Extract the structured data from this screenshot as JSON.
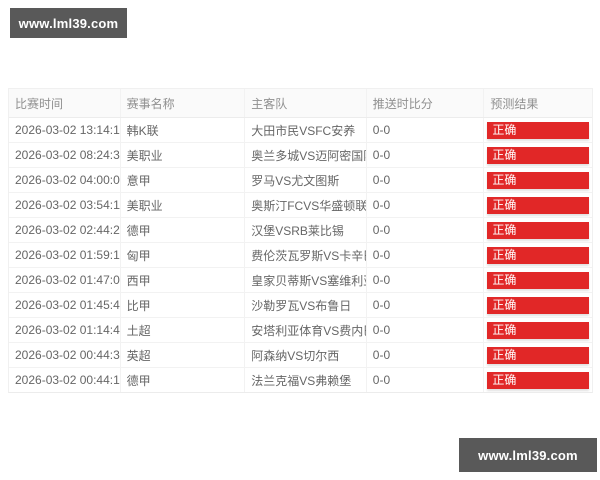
{
  "watermark": {
    "text": "www.lml39.com"
  },
  "table": {
    "headers": [
      "比赛时间",
      "赛事名称",
      "主客队",
      "推送时比分",
      "预测结果"
    ],
    "rows": [
      {
        "time": "2026-03-02 13:14:12",
        "league": "韩K联",
        "teams": "大田市民VSFC安养",
        "score": "0-0",
        "result": "正确"
      },
      {
        "time": "2026-03-02 08:24:33",
        "league": "美职业",
        "teams": "奥兰多城VS迈阿密国际",
        "score": "0-0",
        "result": "正确"
      },
      {
        "time": "2026-03-02 04:00:07",
        "league": "意甲",
        "teams": "罗马VS尤文图斯",
        "score": "0-0",
        "result": "正确"
      },
      {
        "time": "2026-03-02 03:54:11",
        "league": "美职业",
        "teams": "奥斯汀FCVS华盛顿联",
        "score": "0-0",
        "result": "正确"
      },
      {
        "time": "2026-03-02 02:44:20",
        "league": "德甲",
        "teams": "汉堡VSRB莱比锡",
        "score": "0-0",
        "result": "正确"
      },
      {
        "time": "2026-03-02 01:59:14",
        "league": "匈甲",
        "teams": "费伦茨瓦罗斯VS卡辛巴...",
        "score": "0-0",
        "result": "正确"
      },
      {
        "time": "2026-03-02 01:47:00",
        "league": "西甲",
        "teams": "皇家贝蒂斯VS塞维利亚",
        "score": "0-0",
        "result": "正确"
      },
      {
        "time": "2026-03-02 01:45:48",
        "league": "比甲",
        "teams": "沙勒罗瓦VS布鲁日",
        "score": "0-0",
        "result": "正确"
      },
      {
        "time": "2026-03-02 01:14:41",
        "league": "土超",
        "teams": "安塔利亚体育VS费内巴切",
        "score": "0-0",
        "result": "正确"
      },
      {
        "time": "2026-03-02 00:44:34",
        "league": "英超",
        "teams": "阿森纳VS切尔西",
        "score": "0-0",
        "result": "正确"
      },
      {
        "time": "2026-03-02 00:44:13",
        "league": "德甲",
        "teams": "法兰克福VS弗赖堡",
        "score": "0-0",
        "result": "正确"
      }
    ]
  },
  "colors": {
    "badge_red": "#e12727",
    "watermark_bg": "#595959"
  }
}
